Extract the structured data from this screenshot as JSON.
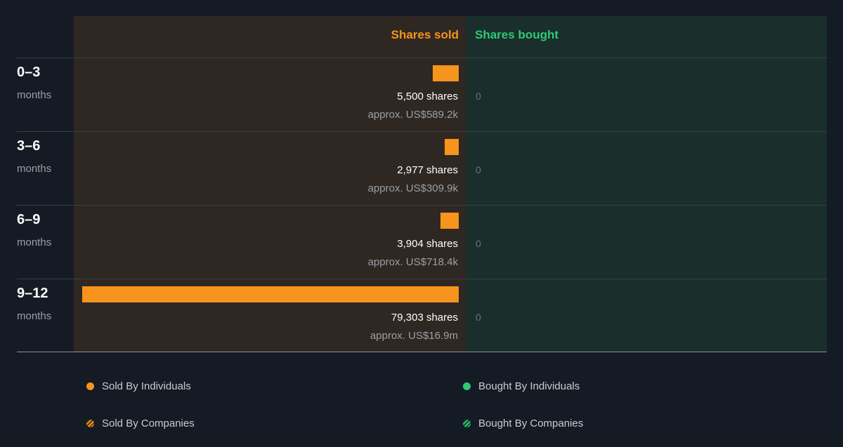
{
  "header": {
    "sold_label": "Shares sold",
    "bought_label": "Shares bought"
  },
  "colors": {
    "sold": "#f7941d",
    "bought": "#2fca72",
    "sold_bg": "#2f2722",
    "bought_bg": "#1a2e2c"
  },
  "rows": [
    {
      "period": "0–3",
      "unit": "months",
      "shares_label": "5,500 shares",
      "approx": "approx. US$589.2k",
      "bought": "0"
    },
    {
      "period": "3–6",
      "unit": "months",
      "shares_label": "2,977 shares",
      "approx": "approx. US$309.9k",
      "bought": "0"
    },
    {
      "period": "6–9",
      "unit": "months",
      "shares_label": "3,904 shares",
      "approx": "approx. US$718.4k",
      "bought": "0"
    },
    {
      "period": "9–12",
      "unit": "months",
      "shares_label": "79,303 shares",
      "approx": "approx. US$16.9m",
      "bought": "0"
    }
  ],
  "legend": {
    "sold_individuals": "Sold By Individuals",
    "bought_individuals": "Bought By Individuals",
    "sold_companies": "Sold By Companies",
    "bought_companies": "Bought By Companies"
  },
  "chart_data": {
    "type": "bar",
    "categories": [
      "0–3",
      "3–6",
      "6–9",
      "9–12"
    ],
    "series": [
      {
        "name": "Shares sold",
        "values": [
          5500,
          2977,
          3904,
          79303
        ]
      },
      {
        "name": "Shares bought",
        "values": [
          0,
          0,
          0,
          0
        ]
      }
    ]
  }
}
